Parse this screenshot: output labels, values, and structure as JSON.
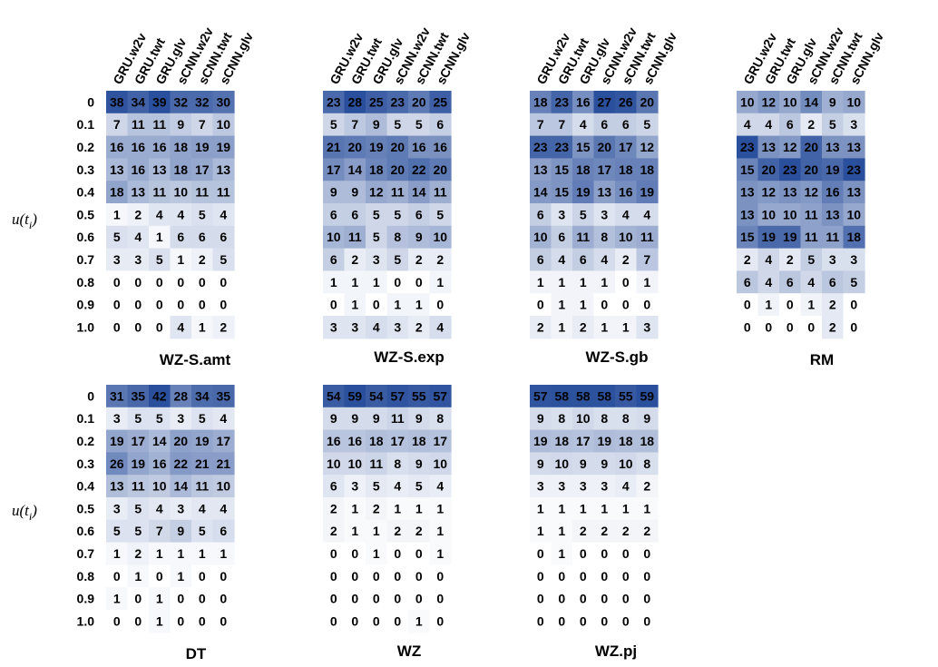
{
  "chart_data": {
    "type": "heatmap",
    "rows": [
      "0",
      "0.1",
      "0.2",
      "0.3",
      "0.4",
      "0.5",
      "0.6",
      "0.7",
      "0.8",
      "0.9",
      "1.0"
    ],
    "columns": [
      "GRU.w2v",
      "GRU.twt",
      "GRU.glv",
      "sCNN.w2v",
      "sCNN.twt",
      "sCNN.glv"
    ],
    "ylabel": "u(t",
    "ylabel_sub": "i",
    "ylabel_close": ")",
    "colormap": {
      "low": "#ffffff",
      "high": "#2a4f9c"
    },
    "panels": [
      {
        "title": "WZ-S.amt",
        "values": [
          [
            38,
            34,
            39,
            32,
            32,
            30
          ],
          [
            7,
            11,
            11,
            9,
            7,
            10
          ],
          [
            16,
            16,
            16,
            18,
            19,
            19
          ],
          [
            13,
            16,
            13,
            18,
            17,
            13
          ],
          [
            18,
            13,
            11,
            10,
            11,
            11
          ],
          [
            1,
            2,
            4,
            4,
            5,
            4
          ],
          [
            5,
            4,
            1,
            6,
            6,
            6
          ],
          [
            3,
            3,
            5,
            1,
            2,
            5
          ],
          [
            0,
            0,
            0,
            0,
            0,
            0
          ],
          [
            0,
            0,
            0,
            0,
            0,
            0
          ],
          [
            0,
            0,
            0,
            4,
            1,
            2
          ]
        ]
      },
      {
        "title": "WZ-S.exp",
        "values": [
          [
            23,
            28,
            25,
            23,
            20,
            25
          ],
          [
            5,
            7,
            9,
            5,
            5,
            6
          ],
          [
            21,
            20,
            19,
            20,
            16,
            16
          ],
          [
            17,
            14,
            18,
            20,
            22,
            20
          ],
          [
            9,
            9,
            12,
            11,
            14,
            11
          ],
          [
            6,
            6,
            5,
            5,
            6,
            5
          ],
          [
            10,
            11,
            5,
            8,
            9,
            10
          ],
          [
            6,
            2,
            3,
            5,
            2,
            2
          ],
          [
            1,
            1,
            1,
            0,
            0,
            1
          ],
          [
            0,
            1,
            0,
            1,
            1,
            0
          ],
          [
            3,
            3,
            4,
            3,
            2,
            4
          ]
        ]
      },
      {
        "title": "WZ-S.gb",
        "values": [
          [
            18,
            23,
            16,
            27,
            26,
            20
          ],
          [
            7,
            7,
            4,
            6,
            6,
            5
          ],
          [
            23,
            23,
            15,
            20,
            17,
            12
          ],
          [
            13,
            15,
            18,
            17,
            18,
            18
          ],
          [
            14,
            15,
            19,
            13,
            16,
            19
          ],
          [
            6,
            3,
            5,
            3,
            4,
            4
          ],
          [
            10,
            6,
            11,
            8,
            10,
            11
          ],
          [
            6,
            4,
            6,
            4,
            2,
            7
          ],
          [
            1,
            1,
            1,
            1,
            0,
            1
          ],
          [
            0,
            1,
            1,
            0,
            0,
            0
          ],
          [
            2,
            1,
            2,
            1,
            1,
            3
          ]
        ]
      },
      {
        "title": "RM",
        "values": [
          [
            10,
            12,
            10,
            14,
            9,
            10
          ],
          [
            4,
            4,
            6,
            2,
            5,
            3
          ],
          [
            23,
            13,
            12,
            20,
            13,
            13
          ],
          [
            15,
            20,
            23,
            20,
            19,
            23
          ],
          [
            13,
            12,
            13,
            12,
            16,
            13
          ],
          [
            13,
            10,
            10,
            11,
            13,
            10
          ],
          [
            15,
            19,
            19,
            11,
            11,
            18
          ],
          [
            2,
            4,
            2,
            5,
            3,
            3
          ],
          [
            6,
            4,
            6,
            4,
            6,
            5
          ],
          [
            0,
            1,
            0,
            1,
            2,
            0
          ],
          [
            0,
            0,
            0,
            0,
            2,
            0
          ]
        ]
      },
      {
        "title": "DT",
        "values": [
          [
            31,
            35,
            42,
            28,
            34,
            35
          ],
          [
            3,
            5,
            5,
            3,
            5,
            4
          ],
          [
            19,
            17,
            14,
            20,
            19,
            17
          ],
          [
            26,
            19,
            16,
            22,
            21,
            21
          ],
          [
            13,
            11,
            10,
            14,
            11,
            10
          ],
          [
            3,
            5,
            4,
            3,
            4,
            4
          ],
          [
            5,
            5,
            7,
            9,
            5,
            6
          ],
          [
            1,
            2,
            1,
            1,
            1,
            1
          ],
          [
            0,
            1,
            0,
            1,
            0,
            0
          ],
          [
            1,
            0,
            1,
            0,
            0,
            0
          ],
          [
            0,
            0,
            1,
            0,
            0,
            0
          ]
        ]
      },
      {
        "title": "WZ",
        "values": [
          [
            54,
            59,
            54,
            57,
            55,
            57
          ],
          [
            9,
            9,
            9,
            11,
            9,
            8
          ],
          [
            16,
            16,
            18,
            17,
            18,
            17
          ],
          [
            10,
            10,
            11,
            8,
            9,
            10
          ],
          [
            6,
            3,
            5,
            4,
            5,
            4
          ],
          [
            2,
            1,
            2,
            1,
            1,
            1
          ],
          [
            2,
            1,
            1,
            2,
            2,
            1
          ],
          [
            0,
            0,
            1,
            0,
            0,
            1
          ],
          [
            0,
            0,
            0,
            0,
            0,
            0
          ],
          [
            0,
            0,
            0,
            0,
            0,
            0
          ],
          [
            0,
            0,
            0,
            0,
            1,
            0
          ]
        ]
      },
      {
        "title": "WZ.pj",
        "values": [
          [
            57,
            58,
            58,
            58,
            55,
            59
          ],
          [
            9,
            8,
            10,
            8,
            8,
            9
          ],
          [
            19,
            18,
            17,
            19,
            18,
            18
          ],
          [
            9,
            10,
            9,
            9,
            10,
            8
          ],
          [
            3,
            3,
            3,
            3,
            4,
            2
          ],
          [
            1,
            1,
            1,
            1,
            1,
            1
          ],
          [
            1,
            1,
            2,
            2,
            2,
            2
          ],
          [
            0,
            1,
            0,
            0,
            0,
            0
          ],
          [
            0,
            0,
            0,
            0,
            0,
            0
          ],
          [
            0,
            0,
            0,
            0,
            0,
            0
          ],
          [
            0,
            0,
            0,
            0,
            0,
            0
          ]
        ]
      }
    ]
  }
}
